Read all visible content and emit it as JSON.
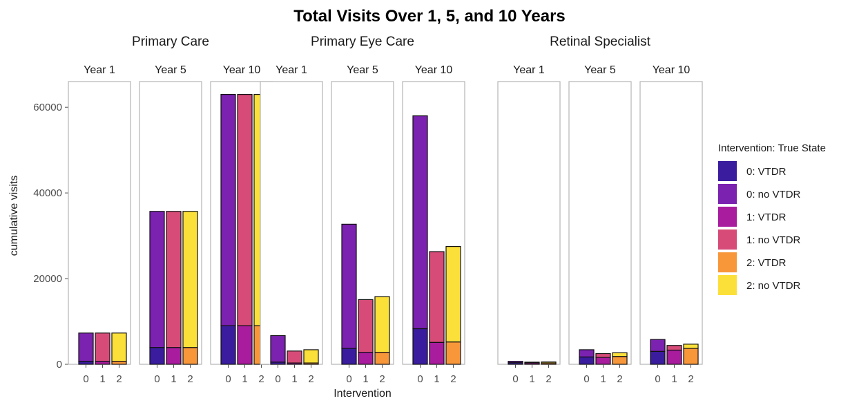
{
  "chart_data": {
    "type": "bar",
    "title": "Total Visits Over 1, 5, and 10 Years",
    "xlabel": "Intervention",
    "ylabel": "cumulative visits",
    "ylim": [
      0,
      66000
    ],
    "y_ticks": [
      0,
      20000,
      40000,
      60000
    ],
    "y_tick_labels": [
      "0",
      "20000",
      "40000",
      "60000"
    ],
    "categories": [
      "0",
      "1",
      "2"
    ],
    "stacked": true,
    "legend": {
      "title": "Intervention: True State",
      "position": "right",
      "entries": [
        {
          "label": "0: VTDR",
          "color": "#3a1d9e"
        },
        {
          "label": "0: no VTDR",
          "color": "#7b22b0"
        },
        {
          "label": "1: VTDR",
          "color": "#a81c9d"
        },
        {
          "label": "1: no VTDR",
          "color": "#d64b78"
        },
        {
          "label": "2: VTDR",
          "color": "#f8973a"
        },
        {
          "label": "2: no VTDR",
          "color": "#fce03a"
        }
      ]
    },
    "groups": [
      {
        "name": "Primary Care",
        "panels": [
          {
            "label": "Year 1",
            "bars": [
              {
                "category": "0",
                "vtdr": 700,
                "no_vtdr": 6600
              },
              {
                "category": "1",
                "vtdr": 700,
                "no_vtdr": 6600
              },
              {
                "category": "2",
                "vtdr": 700,
                "no_vtdr": 6600
              }
            ]
          },
          {
            "label": "Year 5",
            "bars": [
              {
                "category": "0",
                "vtdr": 3900,
                "no_vtdr": 31800
              },
              {
                "category": "1",
                "vtdr": 3900,
                "no_vtdr": 31800
              },
              {
                "category": "2",
                "vtdr": 3900,
                "no_vtdr": 31800
              }
            ]
          },
          {
            "label": "Year 10",
            "bars": [
              {
                "category": "0",
                "vtdr": 9000,
                "no_vtdr": 54000
              },
              {
                "category": "1",
                "vtdr": 9000,
                "no_vtdr": 54000
              },
              {
                "category": "2",
                "vtdr": 9000,
                "no_vtdr": 54000
              }
            ]
          }
        ]
      },
      {
        "name": "Primary Eye Care",
        "panels": [
          {
            "label": "Year 1",
            "bars": [
              {
                "category": "0",
                "vtdr": 500,
                "no_vtdr": 6200
              },
              {
                "category": "1",
                "vtdr": 300,
                "no_vtdr": 2800
              },
              {
                "category": "2",
                "vtdr": 300,
                "no_vtdr": 3100
              }
            ]
          },
          {
            "label": "Year 5",
            "bars": [
              {
                "category": "0",
                "vtdr": 3700,
                "no_vtdr": 29000
              },
              {
                "category": "1",
                "vtdr": 2800,
                "no_vtdr": 12300
              },
              {
                "category": "2",
                "vtdr": 2800,
                "no_vtdr": 13000
              }
            ]
          },
          {
            "label": "Year 10",
            "bars": [
              {
                "category": "0",
                "vtdr": 8300,
                "no_vtdr": 49700
              },
              {
                "category": "1",
                "vtdr": 5100,
                "no_vtdr": 21200
              },
              {
                "category": "2",
                "vtdr": 5200,
                "no_vtdr": 22300
              }
            ]
          }
        ]
      },
      {
        "name": "Retinal Specialist",
        "panels": [
          {
            "label": "Year 1",
            "bars": [
              {
                "category": "0",
                "vtdr": 350,
                "no_vtdr": 350
              },
              {
                "category": "1",
                "vtdr": 300,
                "no_vtdr": 200
              },
              {
                "category": "2",
                "vtdr": 300,
                "no_vtdr": 250
              }
            ]
          },
          {
            "label": "Year 5",
            "bars": [
              {
                "category": "0",
                "vtdr": 1700,
                "no_vtdr": 1700
              },
              {
                "category": "1",
                "vtdr": 1600,
                "no_vtdr": 900
              },
              {
                "category": "2",
                "vtdr": 1800,
                "no_vtdr": 900
              }
            ]
          },
          {
            "label": "Year 10",
            "bars": [
              {
                "category": "0",
                "vtdr": 3000,
                "no_vtdr": 2800
              },
              {
                "category": "1",
                "vtdr": 3300,
                "no_vtdr": 1100
              },
              {
                "category": "2",
                "vtdr": 3700,
                "no_vtdr": 1000
              }
            ]
          }
        ]
      }
    ]
  }
}
